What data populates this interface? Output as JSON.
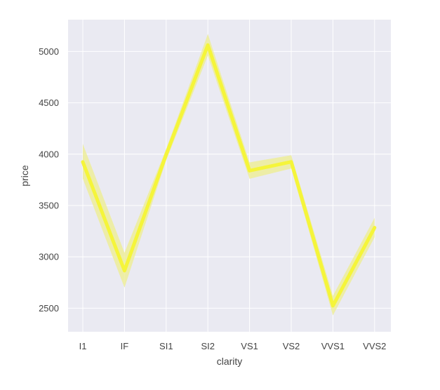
{
  "chart_data": {
    "type": "line",
    "title": "",
    "xlabel": "clarity",
    "ylabel": "price",
    "categories": [
      "I1",
      "IF",
      "SI1",
      "SI2",
      "VS1",
      "VS2",
      "VVS1",
      "VVS2"
    ],
    "series": [
      {
        "name": "price",
        "values": [
          3924,
          2865,
          3996,
          5063,
          3839,
          3925,
          2523,
          3284
        ],
        "ci_low": [
          3760,
          2700,
          3940,
          4960,
          3760,
          3860,
          2430,
          3190
        ],
        "ci_high": [
          4100,
          3040,
          4050,
          5170,
          3920,
          3990,
          2620,
          3380
        ],
        "color": "#f5f53a",
        "band_color": "#eded9a"
      }
    ],
    "yticks": [
      2500,
      3000,
      3500,
      4000,
      4500,
      5000
    ],
    "ylim": [
      2270,
      5310
    ],
    "grid": true,
    "background": "#eaeaf2",
    "grid_color": "#ffffff"
  }
}
